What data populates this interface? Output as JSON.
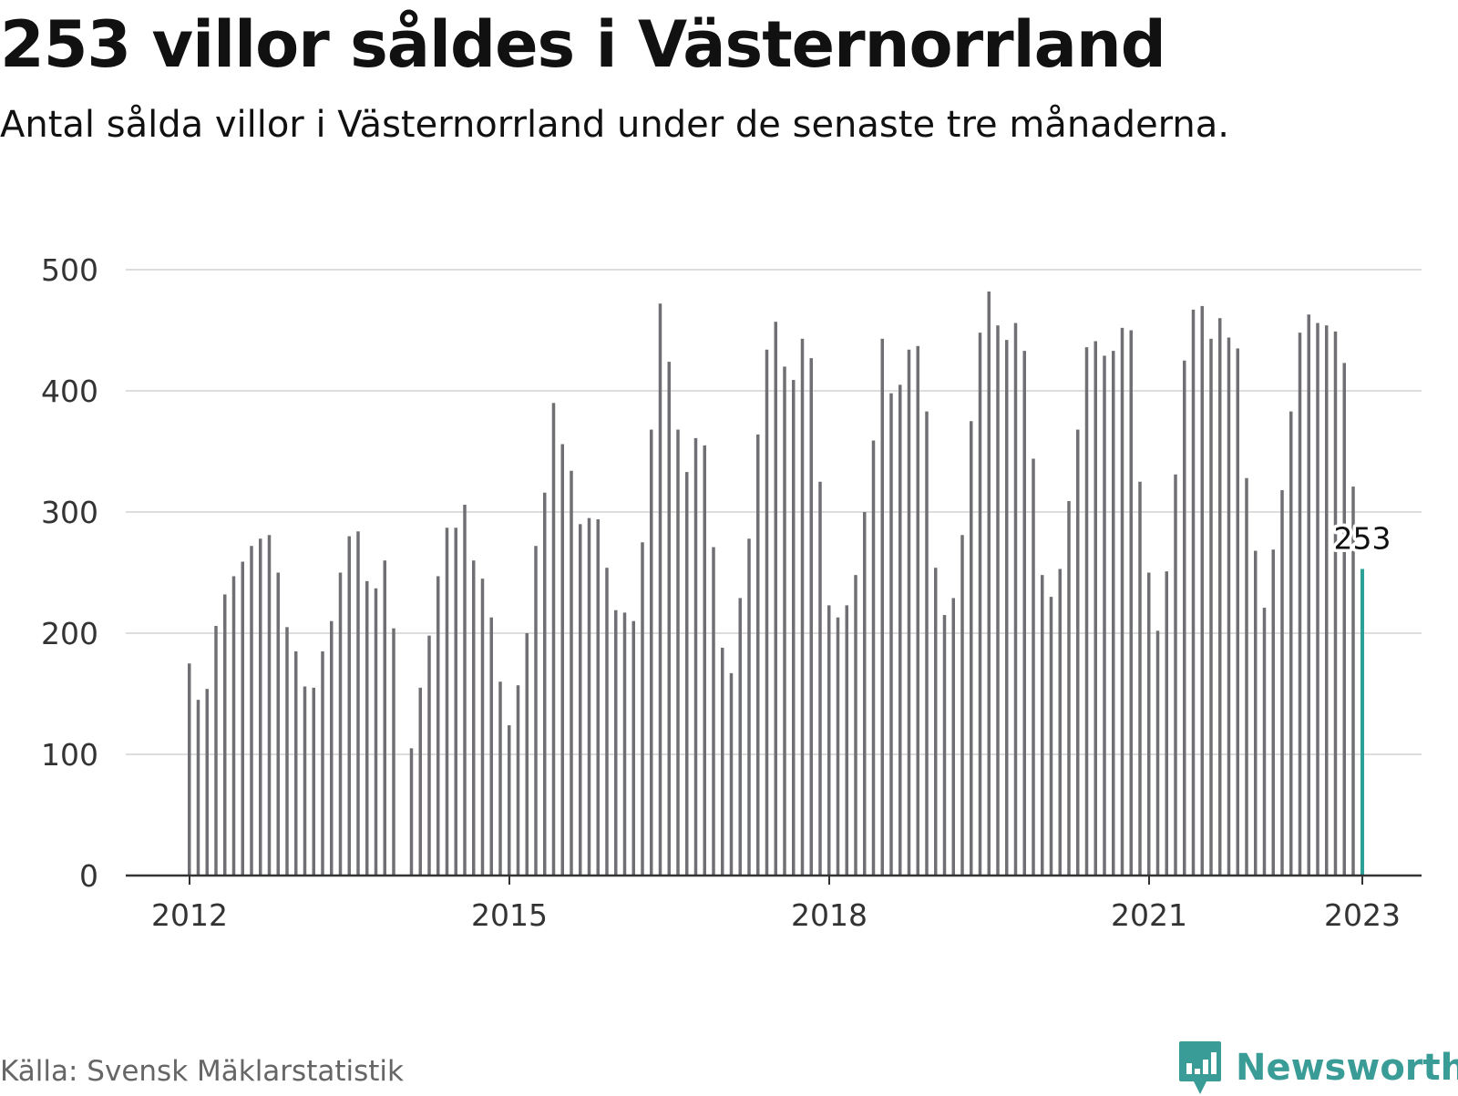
{
  "header": {
    "title": "253 villor såldes i Västernorrland",
    "subtitle": "Antal sålda villor i Västernorrland under de senaste tre månaderna."
  },
  "footer": {
    "source": "Källa: Svensk Mäklarstatistik",
    "brand": "Newsworthy",
    "brand_icon": "bar-chart-speech-bubble-icon"
  },
  "colors": {
    "bar": "#707074",
    "highlight": "#2aa198",
    "grid": "#dddddd",
    "axis": "#333333",
    "brand": "#3a9c96"
  },
  "chart_data": {
    "type": "bar",
    "title": "253 villor såldes i Västernorrland",
    "subtitle": "Antal sålda villor i Västernorrland under de senaste tre månaderna.",
    "xlabel": "",
    "ylabel": "",
    "ylim": [
      0,
      500
    ],
    "y_ticks": [
      0,
      100,
      200,
      300,
      400,
      500
    ],
    "x_ticks": [
      "2012",
      "2015",
      "2018",
      "2021",
      "2023"
    ],
    "grid": true,
    "legend": "none",
    "start": "2012-01",
    "frequency": "monthly",
    "x": [
      "2012-01",
      "2012-02",
      "2012-03",
      "2012-04",
      "2012-05",
      "2012-06",
      "2012-07",
      "2012-08",
      "2012-09",
      "2012-10",
      "2012-11",
      "2012-12",
      "2013-01",
      "2013-02",
      "2013-03",
      "2013-04",
      "2013-05",
      "2013-06",
      "2013-07",
      "2013-08",
      "2013-09",
      "2013-10",
      "2013-11",
      "2013-12",
      "2014-01",
      "2014-02",
      "2014-03",
      "2014-04",
      "2014-05",
      "2014-06",
      "2014-07",
      "2014-08",
      "2014-09",
      "2014-10",
      "2014-11",
      "2014-12",
      "2015-01",
      "2015-02",
      "2015-03",
      "2015-04",
      "2015-05",
      "2015-06",
      "2015-07",
      "2015-08",
      "2015-09",
      "2015-10",
      "2015-11",
      "2015-12",
      "2016-01",
      "2016-02",
      "2016-03",
      "2016-04",
      "2016-05",
      "2016-06",
      "2016-07",
      "2016-08",
      "2016-09",
      "2016-10",
      "2016-11",
      "2016-12",
      "2017-01",
      "2017-02",
      "2017-03",
      "2017-04",
      "2017-05",
      "2017-06",
      "2017-07",
      "2017-08",
      "2017-09",
      "2017-10",
      "2017-11",
      "2017-12",
      "2018-01",
      "2018-02",
      "2018-03",
      "2018-04",
      "2018-05",
      "2018-06",
      "2018-07",
      "2018-08",
      "2018-09",
      "2018-10",
      "2018-11",
      "2018-12",
      "2019-01",
      "2019-02",
      "2019-03",
      "2019-04",
      "2019-05",
      "2019-06",
      "2019-07",
      "2019-08",
      "2019-09",
      "2019-10",
      "2019-11",
      "2019-12",
      "2020-01",
      "2020-02",
      "2020-03",
      "2020-04",
      "2020-05",
      "2020-06",
      "2020-07",
      "2020-08",
      "2020-09",
      "2020-10",
      "2020-11",
      "2020-12",
      "2021-01",
      "2021-02",
      "2021-03",
      "2021-04",
      "2021-05",
      "2021-06",
      "2021-07",
      "2021-08",
      "2021-09",
      "2021-10",
      "2021-11",
      "2021-12",
      "2022-01",
      "2022-02",
      "2022-03",
      "2022-04",
      "2022-05",
      "2022-06",
      "2022-07",
      "2022-08",
      "2022-09",
      "2022-10",
      "2022-11",
      "2022-12",
      "2023-01"
    ],
    "values": [
      175,
      145,
      154,
      206,
      232,
      247,
      259,
      272,
      278,
      281,
      250,
      205,
      185,
      156,
      155,
      185,
      210,
      250,
      280,
      284,
      243,
      237,
      260,
      204,
      null,
      105,
      155,
      198,
      247,
      287,
      287,
      306,
      260,
      245,
      213,
      160,
      124,
      157,
      200,
      272,
      316,
      390,
      356,
      334,
      290,
      295,
      294,
      254,
      219,
      217,
      210,
      275,
      368,
      472,
      424,
      368,
      333,
      361,
      355,
      271,
      188,
      167,
      229,
      278,
      364,
      434,
      457,
      420,
      409,
      443,
      427,
      325,
      223,
      213,
      223,
      248,
      300,
      359,
      443,
      398,
      405,
      434,
      437,
      383,
      254,
      215,
      229,
      281,
      375,
      448,
      482,
      454,
      442,
      456,
      433,
      344,
      248,
      230,
      253,
      309,
      368,
      436,
      441,
      429,
      433,
      452,
      450,
      325,
      250,
      202,
      251,
      331,
      425,
      467,
      470,
      443,
      460,
      444,
      435,
      328,
      268,
      221,
      269,
      318,
      383,
      448,
      463,
      456,
      454,
      449,
      423,
      321,
      253
    ],
    "highlight": {
      "index": 132,
      "value": 253,
      "label": "253"
    }
  }
}
